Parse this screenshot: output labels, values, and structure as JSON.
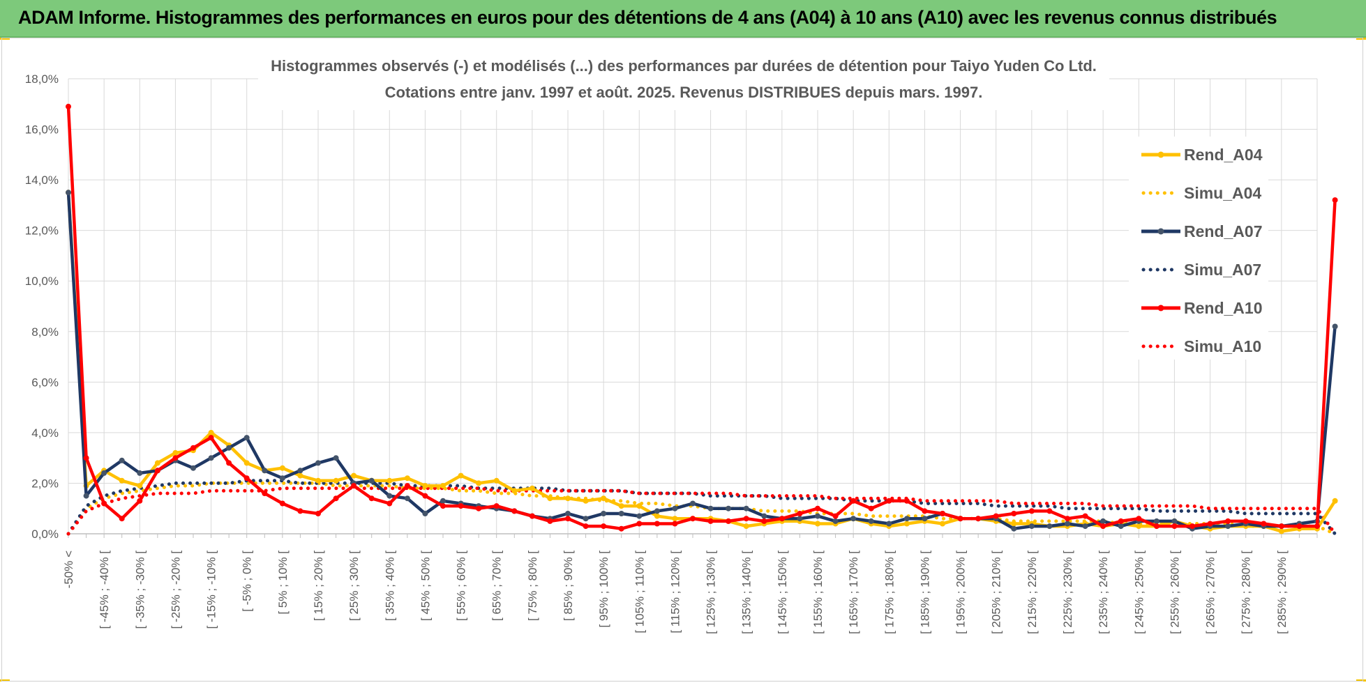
{
  "header": {
    "title": "ADAM Informe. Histogrammes des performances en euros pour des détentions de 4 ans (A04) à 10 ans (A10) avec les revenus connus distribués"
  },
  "colors": {
    "header_bg": "#7dc97b",
    "a04": "#ffc000",
    "a07": "#1f3864",
    "a07_marker": "#44546a",
    "a10": "#ff0000"
  },
  "chart_data": {
    "type": "line",
    "title_lines": [
      "Histogrammes observés (-) et modélisés (...) des performances par durées de détention pour Taiyo Yuden Co Ltd.",
      "Cotations entre janv. 1997 et août. 2025. Revenus DISTRIBUES depuis mars. 1997."
    ],
    "ylim": [
      0,
      18
    ],
    "yticks": [
      "0,0%",
      "2,0%",
      "4,0%",
      "6,0%",
      "8,0%",
      "10,0%",
      "12,0%",
      "14,0%",
      "16,0%",
      "18,0%"
    ],
    "grid": true,
    "legend_position": "right",
    "x_labels": [
      "-50% <",
      "",
      "[ -45% ; -40% [",
      "",
      "[ -35% ; -30% [",
      "",
      "[ -25% ; -20% [",
      "",
      "[ -15% ; -10% [",
      "",
      "[ -5% ; 0% [",
      "",
      "[ 5% ; 10% [",
      "",
      "[ 15% ; 20% [",
      "",
      "[ 25% ; 30% [",
      "",
      "[ 35% ; 40% [",
      "",
      "[ 45% ; 50% [",
      "",
      "[ 55% ; 60% [",
      "",
      "[ 65% ; 70% [",
      "",
      "[ 75% ; 80% [",
      "",
      "[ 85% ; 90% [",
      "",
      "[ 95% ; 100% [",
      "",
      "[ 105% ; 110% [",
      "",
      "[ 115% ; 120% [",
      "",
      "[ 125% ; 130% [",
      "",
      "[ 135% ; 140% [",
      "",
      "[ 145% ; 150% [",
      "",
      "[ 155% ; 160% [",
      "",
      "[ 165% ; 170% [",
      "",
      "[ 175% ; 180% [",
      "",
      "[ 185% ; 190% [",
      "",
      "[ 195% ; 200% [",
      "",
      "[ 205% ; 210% [",
      "",
      "[ 215% ; 220% [",
      "",
      "[ 225% ; 230% [",
      "",
      "[ 235% ; 240% [",
      "",
      "[ 245% ; 250% [",
      "",
      "[ 255% ; 260% [",
      "",
      "[ 265% ; 270% [",
      "",
      "[ 275% ; 280% [",
      "",
      "[ 285% ; 290% [",
      "",
      ""
    ],
    "series": [
      {
        "name": "Rend_A04",
        "style": "solid",
        "color": "#ffc000",
        "values": [
          13.5,
          1.9,
          2.5,
          2.1,
          1.9,
          2.8,
          3.2,
          3.3,
          4.0,
          3.5,
          2.8,
          2.5,
          2.6,
          2.3,
          2.1,
          2.1,
          2.3,
          2.1,
          2.1,
          2.2,
          1.9,
          1.9,
          2.3,
          2.0,
          2.1,
          1.7,
          1.8,
          1.4,
          1.4,
          1.3,
          1.4,
          1.1,
          1.1,
          0.7,
          0.6,
          0.6,
          0.6,
          0.5,
          0.3,
          0.4,
          0.5,
          0.5,
          0.4,
          0.4,
          0.6,
          0.4,
          0.3,
          0.4,
          0.5,
          0.4,
          0.6,
          0.6,
          0.5,
          0.4,
          0.4,
          0.3,
          0.3,
          0.4,
          0.3,
          0.4,
          0.3,
          0.3,
          0.5,
          0.3,
          0.2,
          0.3,
          0.3,
          0.3,
          0.1,
          0.2,
          0.2,
          1.3
        ]
      },
      {
        "name": "Simu_A04",
        "style": "dotted",
        "color": "#ffc000",
        "values": [
          0,
          1.0,
          1.4,
          1.6,
          1.7,
          1.8,
          1.9,
          1.9,
          2.0,
          2.0,
          2.0,
          2.0,
          2.0,
          2.0,
          2.0,
          1.9,
          1.9,
          1.9,
          1.9,
          1.8,
          1.8,
          1.8,
          1.7,
          1.7,
          1.6,
          1.6,
          1.5,
          1.5,
          1.4,
          1.4,
          1.3,
          1.3,
          1.2,
          1.2,
          1.1,
          1.1,
          1.0,
          1.0,
          1.0,
          0.9,
          0.9,
          0.9,
          0.8,
          0.8,
          0.8,
          0.7,
          0.7,
          0.7,
          0.7,
          0.6,
          0.6,
          0.6,
          0.6,
          0.5,
          0.5,
          0.5,
          0.5,
          0.5,
          0.5,
          0.4,
          0.4,
          0.4,
          0.4,
          0.4,
          0.4,
          0.4,
          0.3,
          0.3,
          0.3,
          0.3,
          0.3,
          0.0
        ]
      },
      {
        "name": "Rend_A07",
        "style": "solid",
        "color": "#1f3864",
        "values": [
          13.5,
          1.5,
          2.4,
          2.9,
          2.4,
          2.5,
          2.9,
          2.6,
          3.0,
          3.4,
          3.8,
          2.5,
          2.2,
          2.5,
          2.8,
          3.0,
          2.0,
          2.1,
          1.5,
          1.4,
          0.8,
          1.3,
          1.2,
          1.1,
          1.0,
          0.9,
          0.7,
          0.6,
          0.8,
          0.6,
          0.8,
          0.8,
          0.7,
          0.9,
          1.0,
          1.2,
          1.0,
          1.0,
          1.0,
          0.7,
          0.6,
          0.6,
          0.7,
          0.5,
          0.6,
          0.5,
          0.4,
          0.6,
          0.6,
          0.8,
          0.6,
          0.6,
          0.6,
          0.2,
          0.3,
          0.3,
          0.4,
          0.3,
          0.5,
          0.3,
          0.5,
          0.5,
          0.5,
          0.2,
          0.3,
          0.3,
          0.4,
          0.3,
          0.3,
          0.4,
          0.5,
          8.2
        ]
      },
      {
        "name": "Simu_A07",
        "style": "dotted",
        "color": "#1f3864",
        "values": [
          0,
          1.1,
          1.5,
          1.7,
          1.8,
          1.9,
          2.0,
          2.0,
          2.0,
          2.0,
          2.1,
          2.1,
          2.1,
          2.0,
          2.0,
          2.0,
          2.0,
          2.0,
          2.0,
          1.9,
          1.9,
          1.9,
          1.9,
          1.8,
          1.8,
          1.8,
          1.8,
          1.8,
          1.7,
          1.7,
          1.7,
          1.7,
          1.6,
          1.6,
          1.6,
          1.6,
          1.5,
          1.5,
          1.5,
          1.5,
          1.4,
          1.4,
          1.4,
          1.4,
          1.3,
          1.3,
          1.3,
          1.3,
          1.2,
          1.2,
          1.2,
          1.2,
          1.1,
          1.1,
          1.1,
          1.1,
          1.0,
          1.0,
          1.0,
          1.0,
          1.0,
          0.9,
          0.9,
          0.9,
          0.9,
          0.9,
          0.8,
          0.8,
          0.8,
          0.8,
          0.8,
          0.0
        ]
      },
      {
        "name": "Rend_A10",
        "style": "solid",
        "color": "#ff0000",
        "values": [
          16.9,
          3.0,
          1.2,
          0.6,
          1.3,
          2.5,
          3.0,
          3.4,
          3.8,
          2.8,
          2.2,
          1.6,
          1.2,
          0.9,
          0.8,
          1.4,
          1.9,
          1.4,
          1.2,
          1.9,
          1.5,
          1.1,
          1.1,
          1.0,
          1.1,
          0.9,
          0.7,
          0.5,
          0.6,
          0.3,
          0.3,
          0.2,
          0.4,
          0.4,
          0.4,
          0.6,
          0.5,
          0.5,
          0.6,
          0.5,
          0.6,
          0.8,
          1.0,
          0.7,
          1.3,
          1.0,
          1.3,
          1.3,
          0.9,
          0.8,
          0.6,
          0.6,
          0.7,
          0.8,
          0.9,
          0.9,
          0.6,
          0.7,
          0.3,
          0.5,
          0.6,
          0.3,
          0.3,
          0.3,
          0.4,
          0.5,
          0.5,
          0.4,
          0.3,
          0.3,
          0.3,
          13.2
        ]
      },
      {
        "name": "Simu_A10",
        "style": "dotted",
        "color": "#ff0000",
        "values": [
          0,
          0.9,
          1.2,
          1.4,
          1.5,
          1.6,
          1.6,
          1.6,
          1.7,
          1.7,
          1.7,
          1.7,
          1.8,
          1.8,
          1.8,
          1.8,
          1.8,
          1.8,
          1.8,
          1.8,
          1.8,
          1.8,
          1.8,
          1.8,
          1.7,
          1.7,
          1.7,
          1.7,
          1.7,
          1.7,
          1.7,
          1.7,
          1.6,
          1.6,
          1.6,
          1.6,
          1.6,
          1.6,
          1.5,
          1.5,
          1.5,
          1.5,
          1.5,
          1.4,
          1.4,
          1.4,
          1.4,
          1.4,
          1.3,
          1.3,
          1.3,
          1.3,
          1.3,
          1.2,
          1.2,
          1.2,
          1.2,
          1.2,
          1.1,
          1.1,
          1.1,
          1.1,
          1.1,
          1.1,
          1.0,
          1.0,
          1.0,
          1.0,
          1.0,
          1.0,
          1.0,
          0.0
        ]
      }
    ]
  }
}
